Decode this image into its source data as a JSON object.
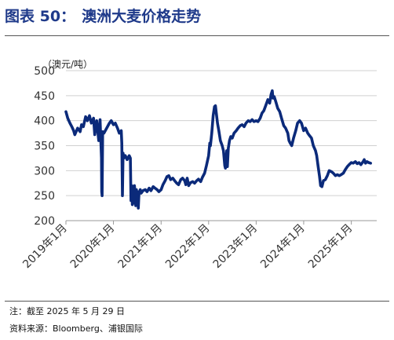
{
  "header": {
    "figure_label": "图表 50：",
    "title": "澳洲大麦价格走势"
  },
  "footer": {
    "note": "注：截至 2025 年 5 月 29 日",
    "source": "资料来源：Bloomberg、浦银国际"
  },
  "colors": {
    "line": "#0b2a7a",
    "title": "#1f3a8a",
    "grid": "#d0d0d0"
  },
  "chart_data": {
    "type": "line",
    "unit_label": "（澳元/吨）",
    "ylim": [
      200,
      500
    ],
    "yticks": [
      200,
      250,
      300,
      350,
      400,
      450,
      500
    ],
    "xlim": [
      "2019-01-01",
      "2025-07-15"
    ],
    "xticks": [
      "2019年1月",
      "2020年1月",
      "2021年1月",
      "2022年1月",
      "2023年1月",
      "2024年1月",
      "2025年1月"
    ],
    "grid": "horizontal",
    "series": [
      {
        "values": [
          [
            "2019-01-01",
            418
          ],
          [
            "2019-01-15",
            405
          ],
          [
            "2019-02-01",
            395
          ],
          [
            "2019-02-15",
            388
          ],
          [
            "2019-03-01",
            380
          ],
          [
            "2019-03-10",
            372
          ],
          [
            "2019-04-01",
            385
          ],
          [
            "2019-04-20",
            378
          ],
          [
            "2019-05-01",
            392
          ],
          [
            "2019-05-15",
            388
          ],
          [
            "2019-06-01",
            408
          ],
          [
            "2019-06-15",
            400
          ],
          [
            "2019-07-01",
            410
          ],
          [
            "2019-07-15",
            395
          ],
          [
            "2019-08-01",
            405
          ],
          [
            "2019-08-10",
            372
          ],
          [
            "2019-08-25",
            400
          ],
          [
            "2019-09-10",
            360
          ],
          [
            "2019-09-20",
            402
          ],
          [
            "2019-10-01",
            325
          ],
          [
            "2019-10-03",
            258
          ],
          [
            "2019-10-06",
            250
          ],
          [
            "2019-10-10",
            378
          ],
          [
            "2019-10-20",
            375
          ],
          [
            "2019-11-10",
            385
          ],
          [
            "2019-12-01",
            395
          ],
          [
            "2019-12-15",
            400
          ],
          [
            "2020-01-01",
            392
          ],
          [
            "2020-01-15",
            395
          ],
          [
            "2020-02-01",
            385
          ],
          [
            "2020-02-15",
            375
          ],
          [
            "2020-03-01",
            380
          ],
          [
            "2020-03-05",
            355
          ],
          [
            "2020-03-10",
            250
          ],
          [
            "2020-03-15",
            335
          ],
          [
            "2020-03-20",
            325
          ],
          [
            "2020-04-01",
            330
          ],
          [
            "2020-04-15",
            322
          ],
          [
            "2020-05-01",
            330
          ],
          [
            "2020-05-10",
            325
          ],
          [
            "2020-05-15",
            240
          ],
          [
            "2020-05-20",
            270
          ],
          [
            "2020-05-25",
            232
          ],
          [
            "2020-06-01",
            268
          ],
          [
            "2020-06-05",
            235
          ],
          [
            "2020-06-10",
            270
          ],
          [
            "2020-06-15",
            255
          ],
          [
            "2020-06-20",
            230
          ],
          [
            "2020-06-25",
            262
          ],
          [
            "2020-07-01",
            250
          ],
          [
            "2020-07-05",
            258
          ],
          [
            "2020-07-10",
            225
          ],
          [
            "2020-07-15",
            255
          ],
          [
            "2020-07-25",
            262
          ],
          [
            "2020-08-01",
            255
          ],
          [
            "2020-08-15",
            260
          ],
          [
            "2020-09-01",
            262
          ],
          [
            "2020-09-15",
            258
          ],
          [
            "2020-10-01",
            265
          ],
          [
            "2020-10-15",
            260
          ],
          [
            "2020-11-01",
            268
          ],
          [
            "2020-11-15",
            265
          ],
          [
            "2020-12-01",
            262
          ],
          [
            "2020-12-15",
            258
          ],
          [
            "2021-01-01",
            262
          ],
          [
            "2021-01-15",
            272
          ],
          [
            "2021-02-01",
            280
          ],
          [
            "2021-02-15",
            288
          ],
          [
            "2021-03-01",
            290
          ],
          [
            "2021-03-15",
            282
          ],
          [
            "2021-04-01",
            285
          ],
          [
            "2021-04-15",
            280
          ],
          [
            "2021-05-01",
            275
          ],
          [
            "2021-05-15",
            272
          ],
          [
            "2021-06-01",
            282
          ],
          [
            "2021-06-15",
            285
          ],
          [
            "2021-07-01",
            280
          ],
          [
            "2021-07-10",
            272
          ],
          [
            "2021-07-20",
            285
          ],
          [
            "2021-08-01",
            270
          ],
          [
            "2021-08-15",
            276
          ],
          [
            "2021-09-01",
            278
          ],
          [
            "2021-09-15",
            275
          ],
          [
            "2021-10-01",
            280
          ],
          [
            "2021-10-15",
            283
          ],
          [
            "2021-11-01",
            278
          ],
          [
            "2021-11-15",
            287
          ],
          [
            "2021-12-01",
            295
          ],
          [
            "2021-12-15",
            310
          ],
          [
            "2022-01-01",
            330
          ],
          [
            "2022-01-10",
            355
          ],
          [
            "2022-01-15",
            350
          ],
          [
            "2022-01-25",
            375
          ],
          [
            "2022-02-05",
            410
          ],
          [
            "2022-02-15",
            428
          ],
          [
            "2022-02-22",
            430
          ],
          [
            "2022-03-01",
            415
          ],
          [
            "2022-03-10",
            395
          ],
          [
            "2022-03-20",
            380
          ],
          [
            "2022-04-01",
            360
          ],
          [
            "2022-04-15",
            350
          ],
          [
            "2022-04-25",
            340
          ],
          [
            "2022-05-05",
            310
          ],
          [
            "2022-05-10",
            305
          ],
          [
            "2022-05-20",
            340
          ],
          [
            "2022-05-25",
            308
          ],
          [
            "2022-06-01",
            345
          ],
          [
            "2022-06-10",
            360
          ],
          [
            "2022-06-20",
            368
          ],
          [
            "2022-07-01",
            365
          ],
          [
            "2022-07-15",
            375
          ],
          [
            "2022-08-01",
            380
          ],
          [
            "2022-08-15",
            385
          ],
          [
            "2022-09-01",
            390
          ],
          [
            "2022-09-15",
            392
          ],
          [
            "2022-10-01",
            388
          ],
          [
            "2022-10-15",
            395
          ],
          [
            "2022-11-01",
            400
          ],
          [
            "2022-11-15",
            398
          ],
          [
            "2022-12-01",
            402
          ],
          [
            "2022-12-15",
            398
          ],
          [
            "2023-01-01",
            400
          ],
          [
            "2023-01-15",
            398
          ],
          [
            "2023-02-01",
            405
          ],
          [
            "2023-02-15",
            415
          ],
          [
            "2023-03-01",
            420
          ],
          [
            "2023-03-15",
            430
          ],
          [
            "2023-04-01",
            442
          ],
          [
            "2023-04-15",
            435
          ],
          [
            "2023-04-25",
            452
          ],
          [
            "2023-05-05",
            460
          ],
          [
            "2023-05-10",
            445
          ],
          [
            "2023-05-20",
            448
          ],
          [
            "2023-06-01",
            438
          ],
          [
            "2023-06-15",
            425
          ],
          [
            "2023-07-01",
            418
          ],
          [
            "2023-07-15",
            405
          ],
          [
            "2023-08-01",
            390
          ],
          [
            "2023-08-15",
            385
          ],
          [
            "2023-09-01",
            375
          ],
          [
            "2023-09-10",
            360
          ],
          [
            "2023-09-20",
            355
          ],
          [
            "2023-10-01",
            350
          ],
          [
            "2023-10-15",
            365
          ],
          [
            "2023-11-01",
            380
          ],
          [
            "2023-11-15",
            395
          ],
          [
            "2023-12-01",
            400
          ],
          [
            "2023-12-15",
            395
          ],
          [
            "2024-01-01",
            380
          ],
          [
            "2024-01-15",
            385
          ],
          [
            "2024-02-01",
            375
          ],
          [
            "2024-02-15",
            370
          ],
          [
            "2024-03-01",
            365
          ],
          [
            "2024-03-15",
            350
          ],
          [
            "2024-04-01",
            340
          ],
          [
            "2024-04-10",
            330
          ],
          [
            "2024-04-20",
            310
          ],
          [
            "2024-05-01",
            290
          ],
          [
            "2024-05-10",
            270
          ],
          [
            "2024-05-20",
            268
          ],
          [
            "2024-06-01",
            280
          ],
          [
            "2024-06-15",
            282
          ],
          [
            "2024-07-01",
            290
          ],
          [
            "2024-07-15",
            300
          ],
          [
            "2024-08-01",
            298
          ],
          [
            "2024-08-15",
            295
          ],
          [
            "2024-09-01",
            290
          ],
          [
            "2024-09-15",
            292
          ],
          [
            "2024-10-01",
            290
          ],
          [
            "2024-10-15",
            292
          ],
          [
            "2024-11-01",
            295
          ],
          [
            "2024-11-15",
            302
          ],
          [
            "2024-12-01",
            308
          ],
          [
            "2024-12-15",
            312
          ],
          [
            "2025-01-01",
            316
          ],
          [
            "2025-01-15",
            315
          ],
          [
            "2025-02-01",
            318
          ],
          [
            "2025-02-15",
            314
          ],
          [
            "2025-03-01",
            316
          ],
          [
            "2025-03-15",
            312
          ],
          [
            "2025-04-01",
            318
          ],
          [
            "2025-04-10",
            322
          ],
          [
            "2025-04-20",
            315
          ],
          [
            "2025-05-01",
            318
          ],
          [
            "2025-05-15",
            316
          ],
          [
            "2025-05-29",
            315
          ]
        ]
      }
    ]
  }
}
